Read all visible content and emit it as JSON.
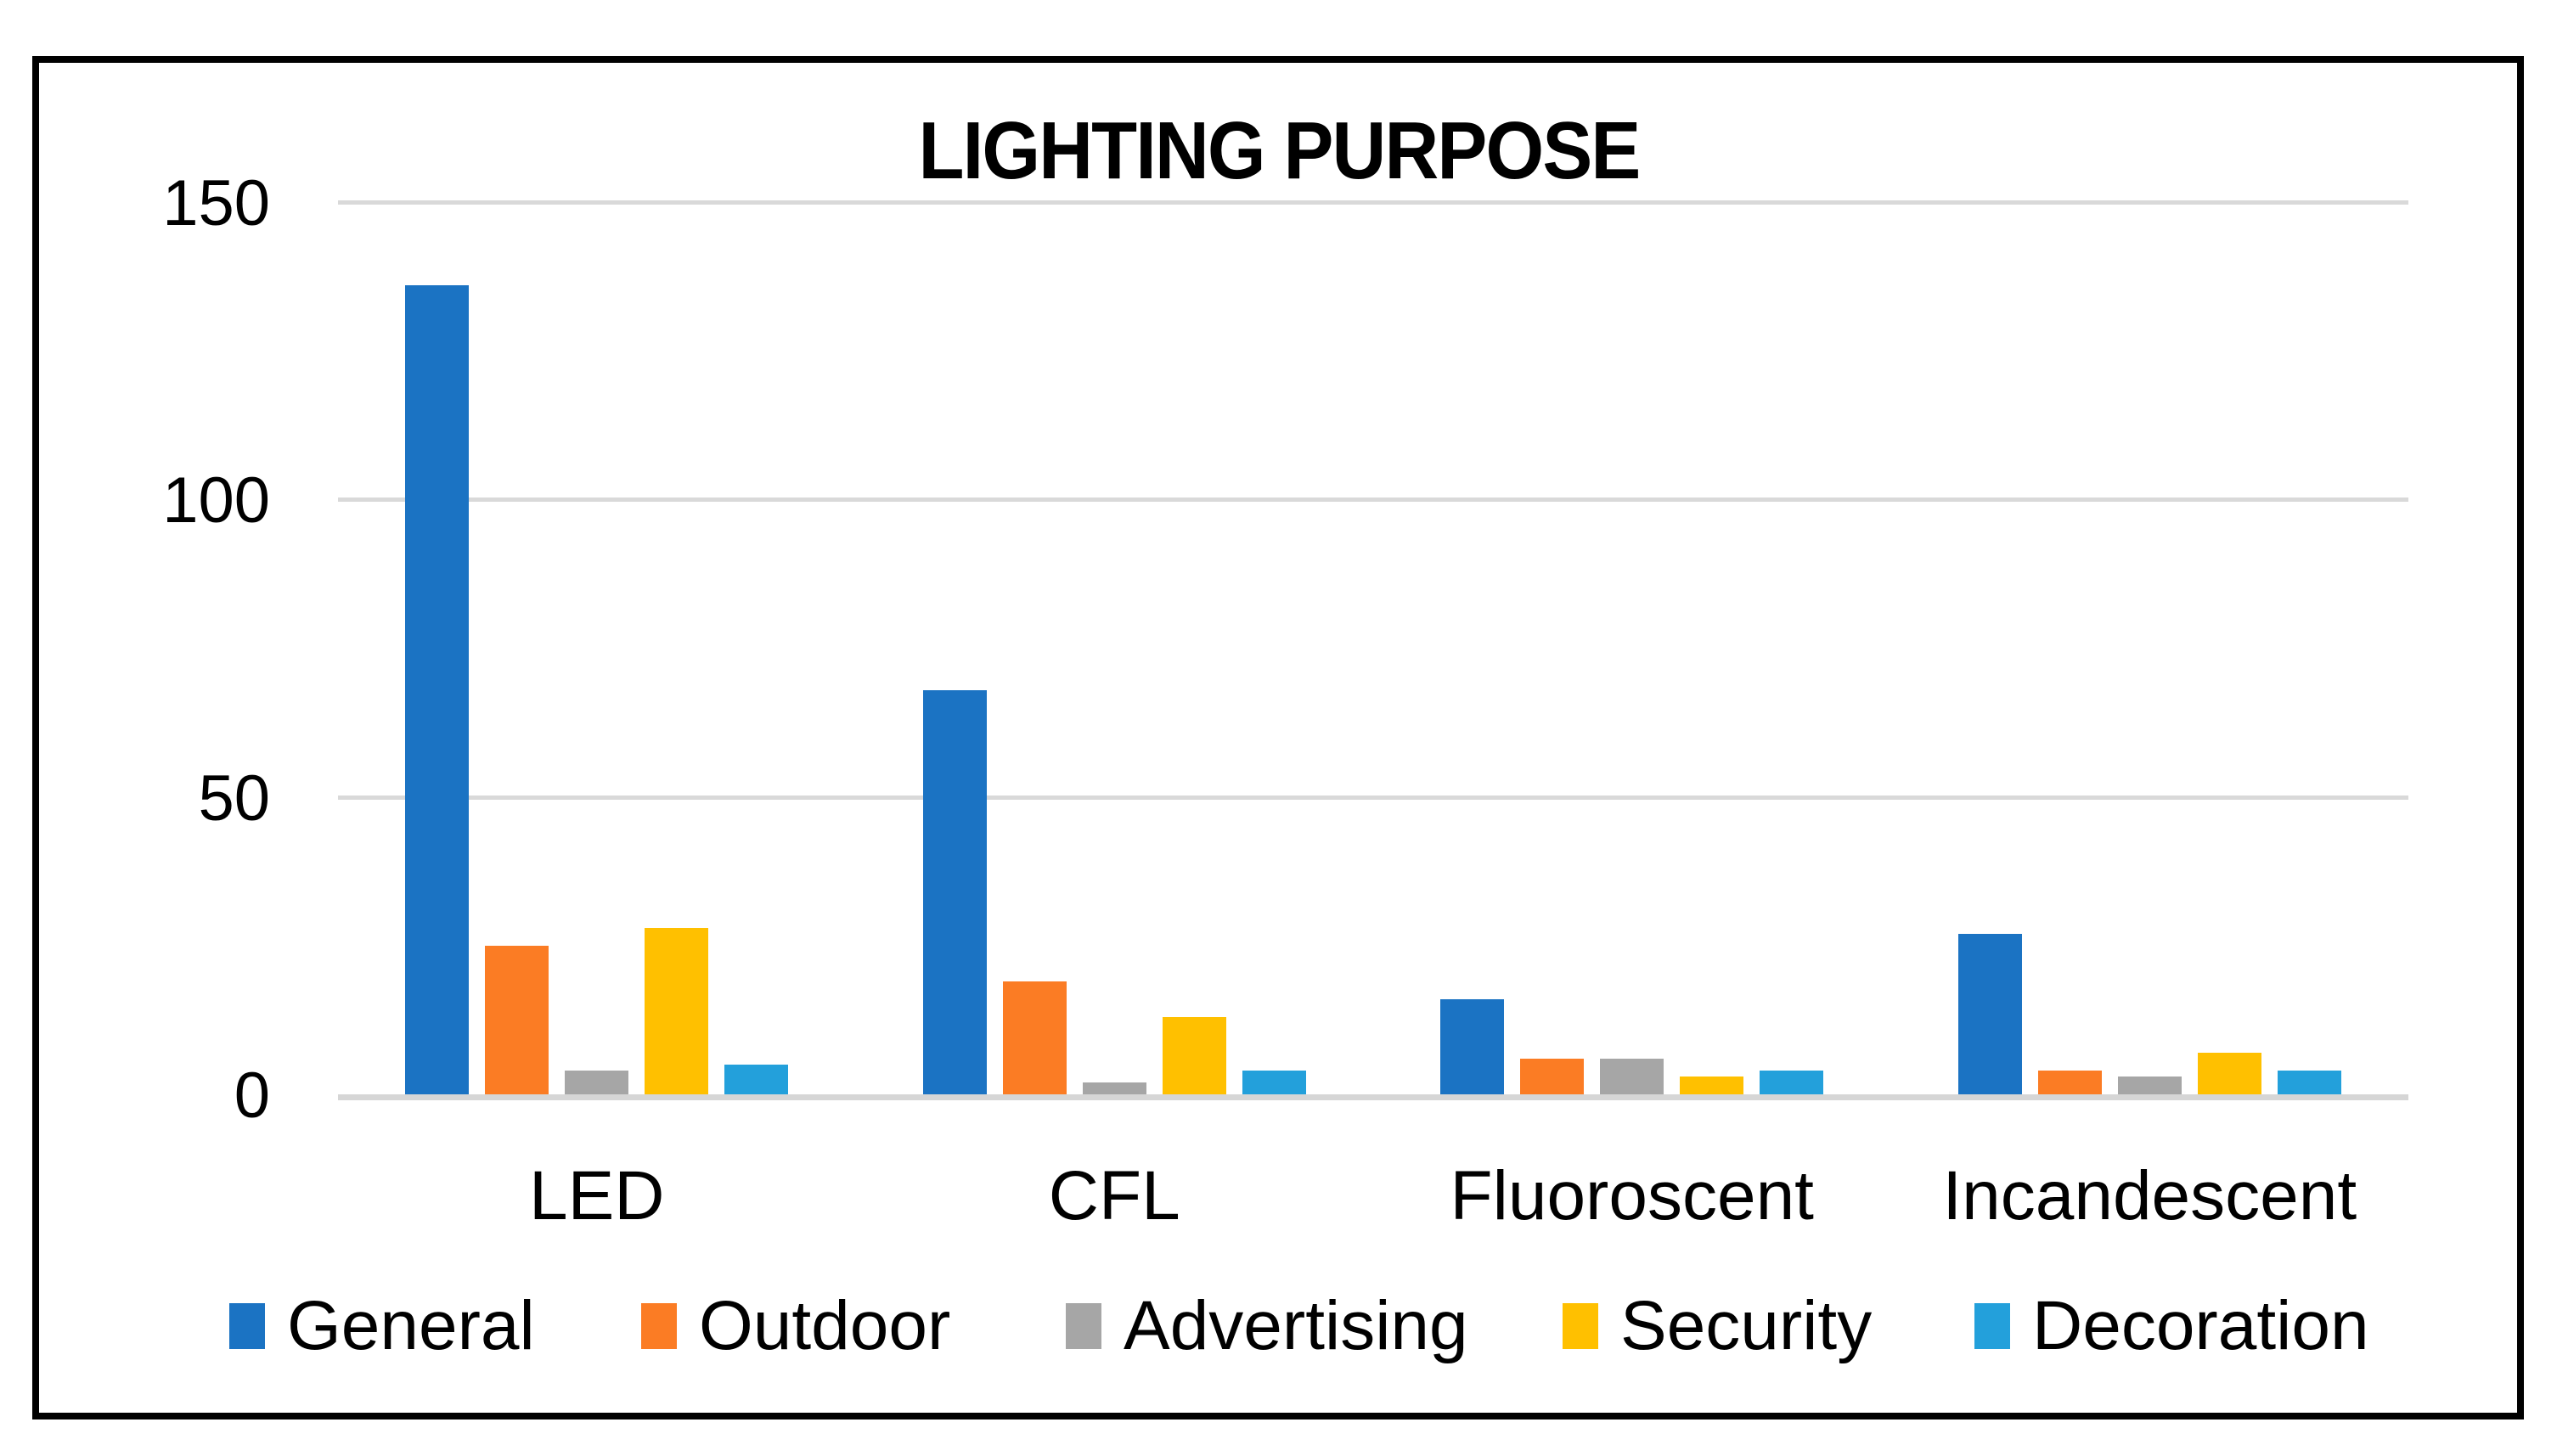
{
  "title": "LIGHTING PURPOSE",
  "chart_data": {
    "type": "bar",
    "title": "LIGHTING PURPOSE",
    "categories": [
      "LED",
      "CFL",
      "Fluoroscent",
      "Incandescent"
    ],
    "series": [
      {
        "name": "General",
        "color": "#1b73c3",
        "values": [
          136,
          68,
          16,
          27
        ]
      },
      {
        "name": "Outdoor",
        "color": "#fb7c24",
        "values": [
          25,
          19,
          6,
          4
        ]
      },
      {
        "name": "Advertising",
        "color": "#a6a6a6",
        "values": [
          4,
          2,
          6,
          3
        ]
      },
      {
        "name": "Security",
        "color": "#ffc000",
        "values": [
          28,
          13,
          3,
          7
        ]
      },
      {
        "name": "Decoration",
        "color": "#23a0db",
        "values": [
          5,
          4,
          4,
          4
        ]
      }
    ],
    "y_axis": {
      "min": 0,
      "max": 150,
      "ticks": [
        0,
        50,
        100,
        150
      ],
      "gridlines": true
    },
    "xlabel": "",
    "ylabel": "",
    "legend_position": "bottom",
    "style": {
      "gridline_color": "#d9d9d9",
      "axis_line_color": "#d6d6d6",
      "frame_border_color": "#000000",
      "background": "#ffffff",
      "text_color": "#000000"
    }
  }
}
